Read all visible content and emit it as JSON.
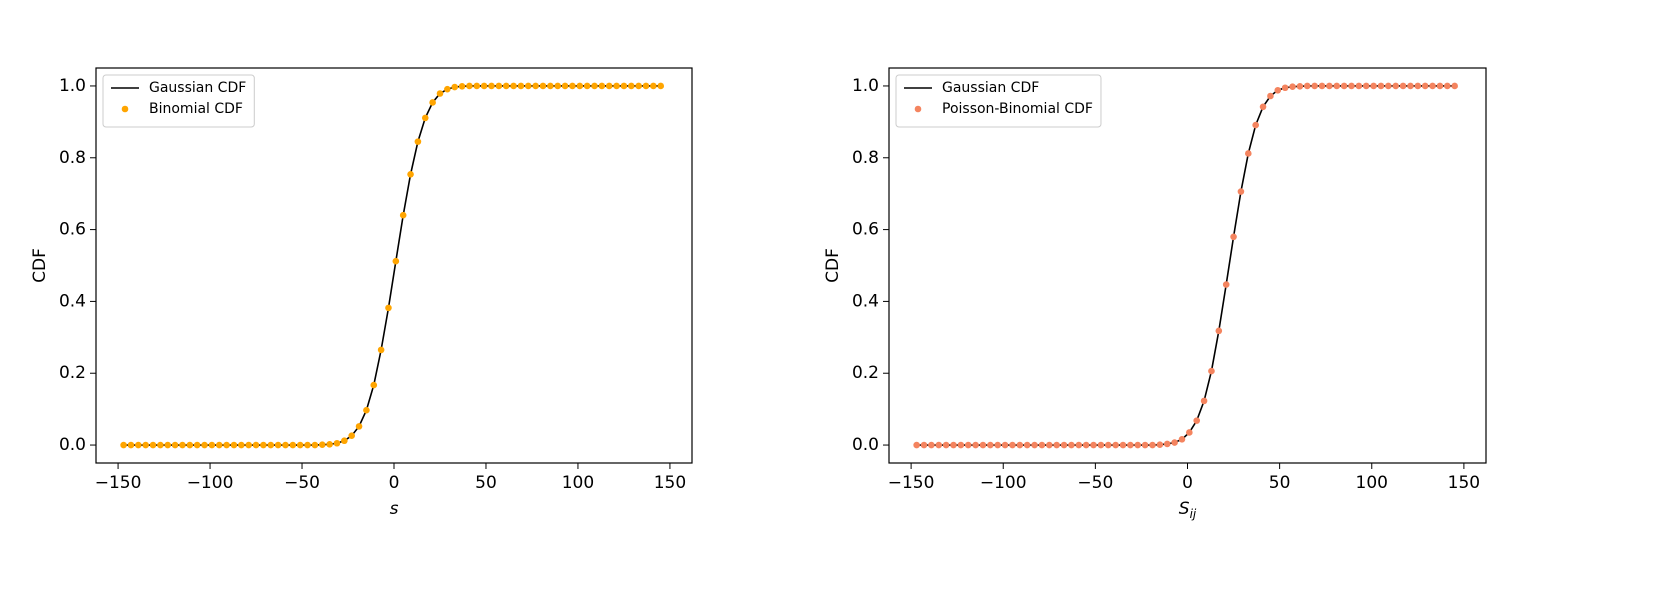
{
  "chart_data": [
    {
      "type": "line",
      "ylabel": "CDF",
      "xlabel": "s",
      "xlim": [
        -162,
        162
      ],
      "ylim": [
        -0.05,
        1.05
      ],
      "xticks": [
        {
          "value": -150,
          "label": "−150"
        },
        {
          "value": -100,
          "label": "−100"
        },
        {
          "value": -50,
          "label": "−50"
        },
        0,
        50,
        100,
        150
      ],
      "yticks": [
        {
          "value": 0,
          "label": "0.0"
        },
        0.2,
        0.4,
        0.6,
        0.8,
        {
          "value": 1,
          "label": "1.0"
        }
      ],
      "legend": "upper left",
      "x": [
        -147,
        -143,
        -139,
        -135,
        -131,
        -127,
        -123,
        -119,
        -115,
        -111,
        -107,
        -103,
        -99,
        -95,
        -91,
        -87,
        -83,
        -79,
        -75,
        -71,
        -67,
        -63,
        -59,
        -55,
        -51,
        -47,
        -43,
        -39,
        -35,
        -31,
        -27,
        -23,
        -19,
        -15,
        -11,
        -7,
        -3,
        1,
        5,
        9,
        13,
        17,
        21,
        25,
        29,
        33,
        37,
        41,
        45,
        49,
        53,
        57,
        61,
        65,
        69,
        73,
        77,
        81,
        85,
        89,
        93,
        97,
        101,
        105,
        109,
        113,
        117,
        121,
        125,
        129,
        133,
        137,
        141,
        145
      ],
      "series": [
        {
          "name": "Gaussian CDF",
          "color": "#000000",
          "style": "line",
          "values": [
            0,
            0,
            0,
            0,
            0,
            0,
            0,
            0,
            0,
            0,
            0,
            0,
            0,
            0,
            0,
            0,
            0,
            0,
            0,
            0,
            0,
            0,
            0,
            0,
            0,
            0,
            0,
            0.001,
            0.002,
            0.005,
            0.012,
            0.026,
            0.052,
            0.097,
            0.167,
            0.265,
            0.382,
            0.512,
            0.64,
            0.754,
            0.845,
            0.911,
            0.954,
            0.979,
            0.991,
            0.997,
            0.999,
            1,
            1,
            1,
            1,
            1,
            1,
            1,
            1,
            1,
            1,
            1,
            1,
            1,
            1,
            1,
            1,
            1,
            1,
            1,
            1,
            1,
            1,
            1,
            1,
            1,
            1,
            1
          ]
        },
        {
          "name": "Binomial CDF",
          "color": "#ffa500",
          "style": "markers",
          "values": [
            0,
            0,
            0,
            0,
            0,
            0,
            0,
            0,
            0,
            0,
            0,
            0,
            0,
            0,
            0,
            0,
            0,
            0,
            0,
            0,
            0,
            0,
            0,
            0,
            0,
            0,
            0,
            0.001,
            0.002,
            0.005,
            0.012,
            0.026,
            0.052,
            0.097,
            0.167,
            0.265,
            0.382,
            0.512,
            0.64,
            0.754,
            0.845,
            0.911,
            0.954,
            0.979,
            0.991,
            0.997,
            0.999,
            1,
            1,
            1,
            1,
            1,
            1,
            1,
            1,
            1,
            1,
            1,
            1,
            1,
            1,
            1,
            1,
            1,
            1,
            1,
            1,
            1,
            1,
            1,
            1,
            1,
            1,
            1
          ]
        }
      ]
    },
    {
      "type": "line",
      "ylabel": "CDF",
      "xlabel": "S",
      "xlabel_sub": "ij",
      "xlim": [
        -162,
        162
      ],
      "ylim": [
        -0.05,
        1.05
      ],
      "xticks": [
        {
          "value": -150,
          "label": "−150"
        },
        {
          "value": -100,
          "label": "−100"
        },
        {
          "value": -50,
          "label": "−50"
        },
        0,
        50,
        100,
        150
      ],
      "yticks": [
        {
          "value": 0,
          "label": "0.0"
        },
        0.2,
        0.4,
        0.6,
        0.8,
        {
          "value": 1,
          "label": "1.0"
        }
      ],
      "legend": "upper left",
      "x": [
        -147,
        -143,
        -139,
        -135,
        -131,
        -127,
        -123,
        -119,
        -115,
        -111,
        -107,
        -103,
        -99,
        -95,
        -91,
        -87,
        -83,
        -79,
        -75,
        -71,
        -67,
        -63,
        -59,
        -55,
        -51,
        -47,
        -43,
        -39,
        -35,
        -31,
        -27,
        -23,
        -19,
        -15,
        -11,
        -7,
        -3,
        1,
        5,
        9,
        13,
        17,
        21,
        25,
        29,
        33,
        37,
        41,
        45,
        49,
        53,
        57,
        61,
        65,
        69,
        73,
        77,
        81,
        85,
        89,
        93,
        97,
        101,
        105,
        109,
        113,
        117,
        121,
        125,
        129,
        133,
        137,
        141,
        145
      ],
      "series": [
        {
          "name": "Gaussian CDF",
          "color": "#000000",
          "style": "line",
          "values": [
            0,
            0,
            0,
            0,
            0,
            0,
            0,
            0,
            0,
            0,
            0,
            0,
            0,
            0,
            0,
            0,
            0,
            0,
            0,
            0,
            0,
            0,
            0,
            0,
            0,
            0,
            0,
            0,
            0,
            0,
            0,
            0,
            0,
            0.001,
            0.003,
            0.007,
            0.016,
            0.035,
            0.068,
            0.123,
            0.206,
            0.318,
            0.447,
            0.58,
            0.706,
            0.812,
            0.891,
            0.942,
            0.972,
            0.988,
            0.995,
            0.998,
            0.999,
            1,
            1,
            1,
            1,
            1,
            1,
            1,
            1,
            1,
            1,
            1,
            1,
            1,
            1,
            1,
            1,
            1,
            1,
            1,
            1,
            1
          ]
        },
        {
          "name": "Poisson-Binomial CDF",
          "color": "#f4845f",
          "style": "markers",
          "values": [
            0,
            0,
            0,
            0,
            0,
            0,
            0,
            0,
            0,
            0,
            0,
            0,
            0,
            0,
            0,
            0,
            0,
            0,
            0,
            0,
            0,
            0,
            0,
            0,
            0,
            0,
            0,
            0,
            0,
            0,
            0,
            0,
            0,
            0.001,
            0.003,
            0.007,
            0.016,
            0.035,
            0.068,
            0.123,
            0.206,
            0.318,
            0.447,
            0.58,
            0.706,
            0.812,
            0.891,
            0.942,
            0.972,
            0.988,
            0.995,
            0.998,
            0.999,
            1,
            1,
            1,
            1,
            1,
            1,
            1,
            1,
            1,
            1,
            1,
            1,
            1,
            1,
            1,
            1,
            1,
            1,
            1,
            1,
            1
          ]
        }
      ]
    }
  ]
}
